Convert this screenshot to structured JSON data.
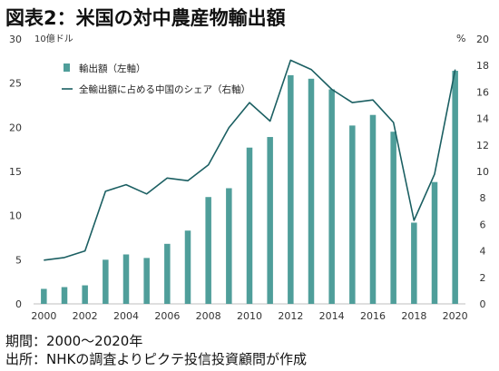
{
  "title": "図表2：米国の対中農産物輸出額",
  "notes": {
    "period": "期間：2000～2020年",
    "source": "出所：NHKの調査よりピクテ投信投資顧問が作成"
  },
  "colors": {
    "bar": "#4f9e9a",
    "line": "#1b5f62"
  },
  "chart_data": {
    "type": "bar+line",
    "x": [
      2000,
      2001,
      2002,
      2003,
      2004,
      2005,
      2006,
      2007,
      2008,
      2009,
      2010,
      2011,
      2012,
      2013,
      2014,
      2015,
      2016,
      2017,
      2018,
      2019,
      2020
    ],
    "x_tick_labels": [
      "2000",
      "2002",
      "2004",
      "2006",
      "2008",
      "2010",
      "2012",
      "2014",
      "2016",
      "2018",
      "2020"
    ],
    "left_axis": {
      "unit": "10億ドル",
      "ylim": [
        0,
        30
      ],
      "ticks": [
        "0",
        "5",
        "10",
        "15",
        "20",
        "25",
        "30"
      ]
    },
    "right_axis": {
      "unit": "%",
      "ylim": [
        0,
        20
      ],
      "ticks": [
        "0",
        "2",
        "4",
        "6",
        "8",
        "10",
        "12",
        "14",
        "16",
        "18",
        "20"
      ]
    },
    "series": [
      {
        "name": "輸出額（左軸）",
        "type": "bar",
        "axis": "left",
        "values": [
          1.7,
          1.9,
          2.1,
          5.0,
          5.6,
          5.2,
          6.8,
          8.3,
          12.1,
          13.1,
          17.7,
          18.9,
          25.9,
          25.5,
          24.3,
          20.2,
          21.4,
          19.5,
          9.2,
          13.8,
          26.4
        ]
      },
      {
        "name": "全輸出額に占める中国のシェア（右軸）",
        "type": "line",
        "axis": "right",
        "values": [
          3.3,
          3.5,
          4.0,
          8.5,
          9.0,
          8.3,
          9.5,
          9.3,
          10.5,
          13.3,
          15.2,
          13.8,
          18.4,
          17.7,
          16.2,
          15.2,
          15.4,
          13.7,
          6.3,
          9.8,
          17.7
        ]
      }
    ],
    "legend_position": "top-center",
    "grid": false
  }
}
